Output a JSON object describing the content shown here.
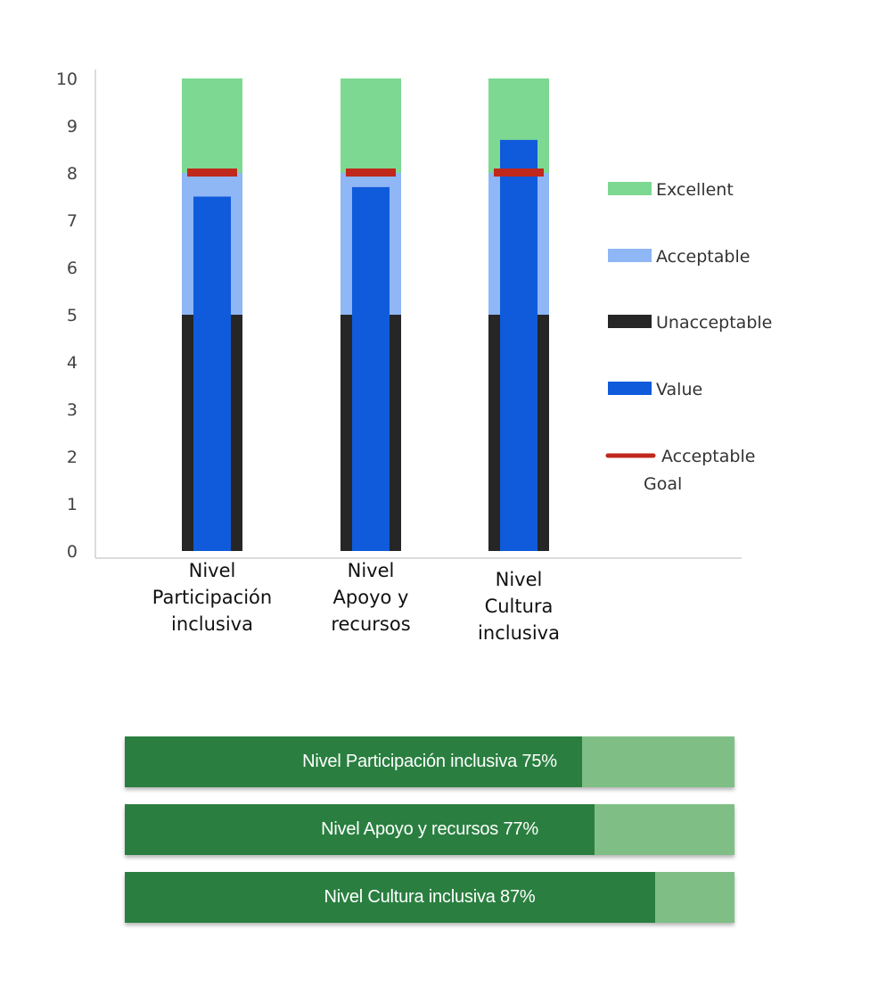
{
  "chart_data": {
    "type": "bar",
    "subtype": "bullet",
    "categories": [
      [
        "Nivel",
        "Participación",
        "inclusiva"
      ],
      [
        "Nivel",
        "Apoyo y",
        "recursos"
      ],
      [
        "Nivel",
        "Cultura",
        "inclusiva"
      ]
    ],
    "ylim": [
      0,
      10
    ],
    "yticks": [
      "0",
      "1",
      "2",
      "3",
      "4",
      "5",
      "6",
      "7",
      "8",
      "9",
      "10"
    ],
    "ranges": [
      {
        "name": "Unacceptable",
        "from": 0,
        "to": 5,
        "color": "#262626"
      },
      {
        "name": "Acceptable",
        "from": 5,
        "to": 8,
        "color": "#8fb6f5"
      },
      {
        "name": "Excellent",
        "from": 8,
        "to": 10,
        "color": "#7dd892"
      }
    ],
    "values": [
      7.5,
      7.7,
      8.7
    ],
    "value_color": "#0f5bdb",
    "acceptable_goal": [
      8,
      8,
      8
    ],
    "goal_color": "#c0281c",
    "legend": {
      "placement": "right",
      "items": [
        {
          "label": "Excellent",
          "color": "#7dd892",
          "kind": "box"
        },
        {
          "label": "Acceptable",
          "color": "#8fb6f5",
          "kind": "box"
        },
        {
          "label": "Unacceptable",
          "color": "#262626",
          "kind": "box"
        },
        {
          "label": "Value",
          "color": "#0f5bdb",
          "kind": "box"
        },
        {
          "label": "Acceptable",
          "label2": "Goal",
          "color": "#c0281c",
          "kind": "line"
        }
      ]
    },
    "grid": false
  },
  "progress": [
    {
      "label": "Nivel Participación inclusiva 75%",
      "value": 0.75
    },
    {
      "label": "Nivel Apoyo y recursos 77%",
      "value": 0.77
    },
    {
      "label": "Nivel Cultura inclusiva 87%",
      "value": 0.87
    }
  ],
  "colors": {
    "progress_fill": "#2a7f40",
    "progress_track": "#7fbf86",
    "axis": "#d0d0d0"
  }
}
